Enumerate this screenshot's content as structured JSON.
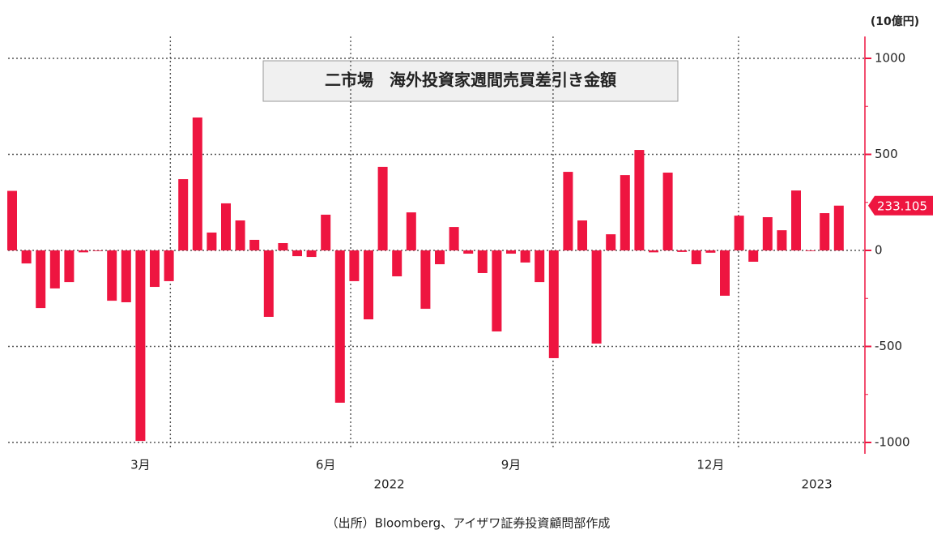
{
  "chart_data": {
    "type": "bar",
    "title": "二市場　海外投資家週間売買差引き金額",
    "unit_label": "(10億円)",
    "source": "（出所）Bloomberg、アイザワ証券投資顧問部作成",
    "categories": [
      null,
      null,
      null,
      null,
      null,
      null,
      null,
      null,
      null,
      "3月",
      null,
      null,
      null,
      null,
      null,
      null,
      null,
      null,
      null,
      null,
      null,
      null,
      "6月",
      null,
      null,
      null,
      null,
      null,
      null,
      null,
      null,
      null,
      null,
      null,
      null,
      "9月",
      null,
      null,
      null,
      null,
      null,
      null,
      null,
      null,
      null,
      null,
      null,
      null,
      null,
      "12月",
      null,
      null,
      null,
      null,
      null,
      null,
      null,
      null,
      null
    ],
    "categories2": [
      null,
      null,
      null,
      null,
      null,
      null,
      null,
      null,
      null,
      null,
      null,
      null,
      null,
      null,
      null,
      null,
      null,
      null,
      null,
      null,
      null,
      null,
      null,
      null,
      null,
      null,
      "2022",
      null,
      null,
      null,
      null,
      null,
      null,
      null,
      null,
      null,
      null,
      null,
      null,
      null,
      null,
      null,
      null,
      null,
      null,
      null,
      null,
      null,
      null,
      null,
      null,
      null,
      null,
      null,
      null,
      null,
      "2023",
      null,
      null
    ],
    "series": [
      {
        "name": "海外投資家週間売買差引き金額",
        "color": "#ee1540",
        "values": [
          310,
          -68,
          -300,
          -198,
          -165,
          -10,
          -3,
          -262,
          -270,
          -992,
          -190,
          -160,
          371,
          692,
          93,
          245,
          156,
          55,
          -346,
          38,
          -30,
          -34,
          186,
          -793,
          -160,
          -359,
          435,
          -135,
          198,
          -304,
          -72,
          122,
          -17,
          -118,
          -422,
          -17,
          -63,
          -165,
          -561,
          409,
          156,
          -485,
          84,
          392,
          523,
          -10,
          405,
          -8,
          -72,
          -12,
          -236,
          181,
          -59,
          173,
          105,
          312,
          -3,
          194,
          233.105
        ]
      }
    ],
    "ylim": [
      -1000,
      1000
    ],
    "yticks": [
      -1000,
      -500,
      0,
      500,
      1000
    ],
    "grid": true
  }
}
